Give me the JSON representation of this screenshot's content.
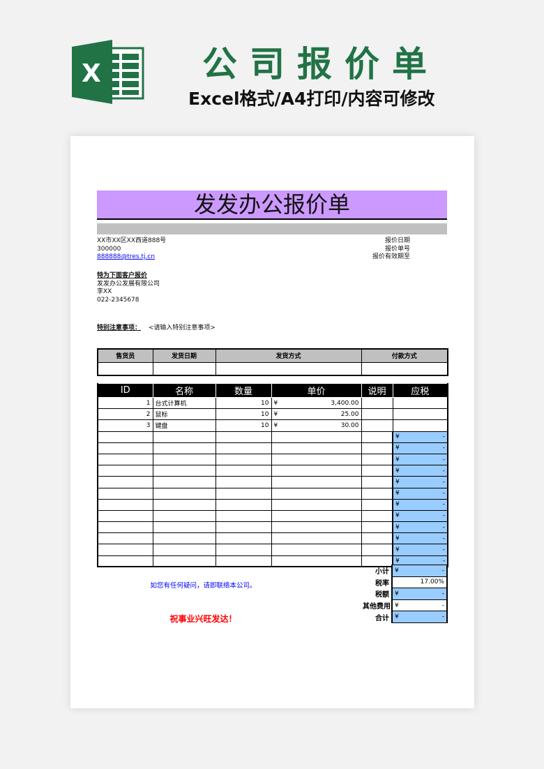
{
  "banner": {
    "title": "公司报价单",
    "subtitle": "Excel格式/A4打印/内容可修改",
    "logo_letter": "X",
    "brand_color": "#217346"
  },
  "sheet": {
    "title": "发发办公报价单",
    "seller": {
      "address": "XX市XX区XX西道888号",
      "postcode": "300000",
      "email": "888888@tres.tj.cn"
    },
    "quote_meta": {
      "date_label": "报价日期",
      "number_label": "报价单号",
      "valid_label": "报价有效期至"
    },
    "customer": {
      "heading": "特为下面客户报价",
      "company": "发发办公发展有限公司",
      "contact": "李XX",
      "phone": "022-2345678"
    },
    "notes": {
      "label": "特别注意事项：",
      "placeholder": "<请输入特别注意事项>"
    },
    "sales_table": {
      "headers": [
        "售货员",
        "发货日期",
        "发货方式",
        "付款方式"
      ]
    },
    "items_table": {
      "headers": [
        "ID",
        "名称",
        "数量",
        "单价",
        "说明",
        "应税"
      ],
      "currency": "¥",
      "rows": [
        {
          "id": "1",
          "name": "台式计算机",
          "qty": "10",
          "price": "3,400.00"
        },
        {
          "id": "2",
          "name": "鼠标",
          "qty": "10",
          "price": "25.00"
        },
        {
          "id": "3",
          "name": "键盘",
          "qty": "10",
          "price": "30.00"
        }
      ],
      "empty_taxable_value": "-"
    },
    "summary": [
      {
        "label": "小计",
        "value": "-",
        "currency": "¥",
        "highlight": true
      },
      {
        "label": "税率",
        "value": "17.00%",
        "currency": "",
        "highlight": false
      },
      {
        "label": "税额",
        "value": "-",
        "currency": "¥",
        "highlight": true
      },
      {
        "label": "其他费用",
        "value": "-",
        "currency": "¥",
        "highlight": false
      },
      {
        "label": "合计",
        "value": "-",
        "currency": "¥",
        "highlight": true
      }
    ],
    "contact_note": "如您有任何疑问，请即联络本公司。",
    "closing": "祝事业兴旺发达！",
    "colors": {
      "title_bg": "#cc99ff",
      "highlight": "#99ccff",
      "header_gray": "#c0c0c0"
    }
  }
}
